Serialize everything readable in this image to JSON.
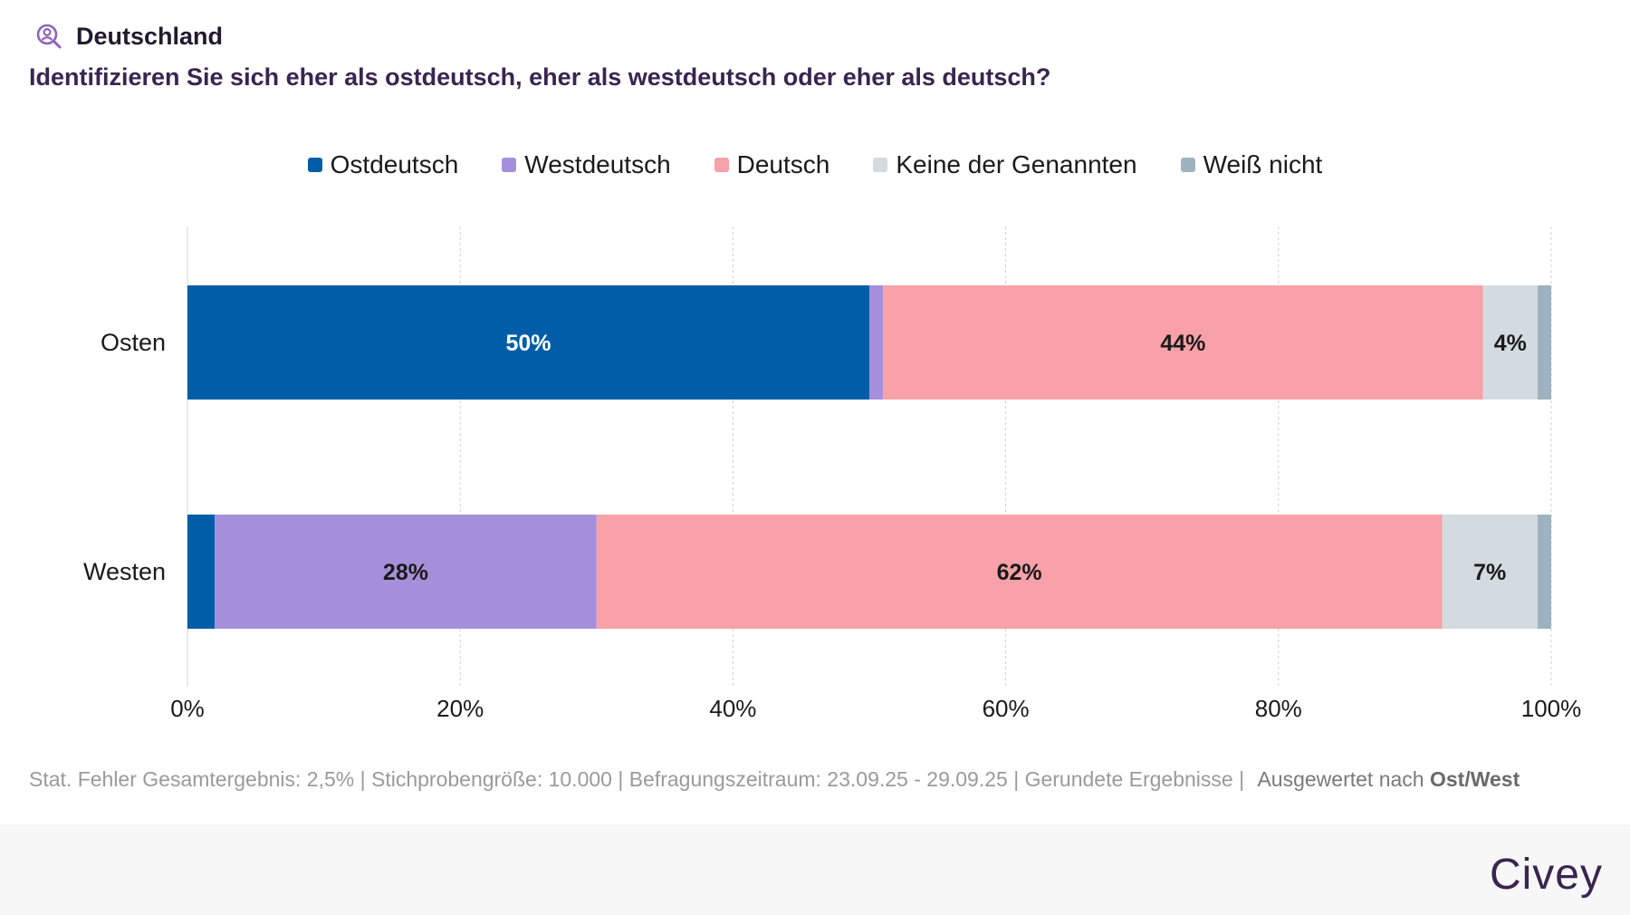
{
  "header": {
    "region": "Deutschland",
    "region_icon": "person-search-icon"
  },
  "question": "Identifizieren Sie sich eher als ostdeutsch, eher als westdeutsch oder eher als deutsch?",
  "chart_data": {
    "type": "bar",
    "orientation": "horizontal",
    "stacked": true,
    "title": "Identifizieren Sie sich eher als ostdeutsch, eher als westdeutsch oder eher als deutsch?",
    "categories": [
      "Osten",
      "Westen"
    ],
    "series": [
      {
        "name": "Ostdeutsch",
        "color": "#005ea8",
        "values": [
          50,
          2
        ],
        "labels": [
          "50%",
          ""
        ],
        "label_color": "#ffffff"
      },
      {
        "name": "Westdeutsch",
        "color": "#a58fdb",
        "values": [
          1,
          28
        ],
        "labels": [
          "",
          "28%"
        ],
        "label_color": "#1a1a1a"
      },
      {
        "name": "Deutsch",
        "color": "#f8a1a8",
        "values": [
          44,
          62
        ],
        "labels": [
          "44%",
          "62%"
        ],
        "label_color": "#1a1a1a"
      },
      {
        "name": "Keine der Genannten",
        "color": "#d3dae0",
        "values": [
          4,
          7
        ],
        "labels": [
          "4%",
          "7%"
        ],
        "label_color": "#1a1a1a"
      },
      {
        "name": "Weiß nicht",
        "color": "#9fb2bf",
        "values": [
          1,
          1
        ],
        "labels": [
          "",
          ""
        ],
        "label_color": "#1a1a1a"
      }
    ],
    "xlim": [
      0,
      100
    ],
    "xticks": [
      0,
      20,
      40,
      60,
      80,
      100
    ],
    "xtick_labels": [
      "0%",
      "20%",
      "40%",
      "60%",
      "80%",
      "100%"
    ],
    "grid": true,
    "legend_position": "top-center"
  },
  "footer": {
    "note": "Stat. Fehler Gesamtergebnis: 2,5% | Stichprobengröße: 10.000 | Befragungszeitraum: 23.09.25 - 29.09.25 | Gerundete Ergebnisse |",
    "evaluated_prefix": "Ausgewertet nach",
    "evaluated_by": "Ost/West",
    "brand": "Civey"
  }
}
